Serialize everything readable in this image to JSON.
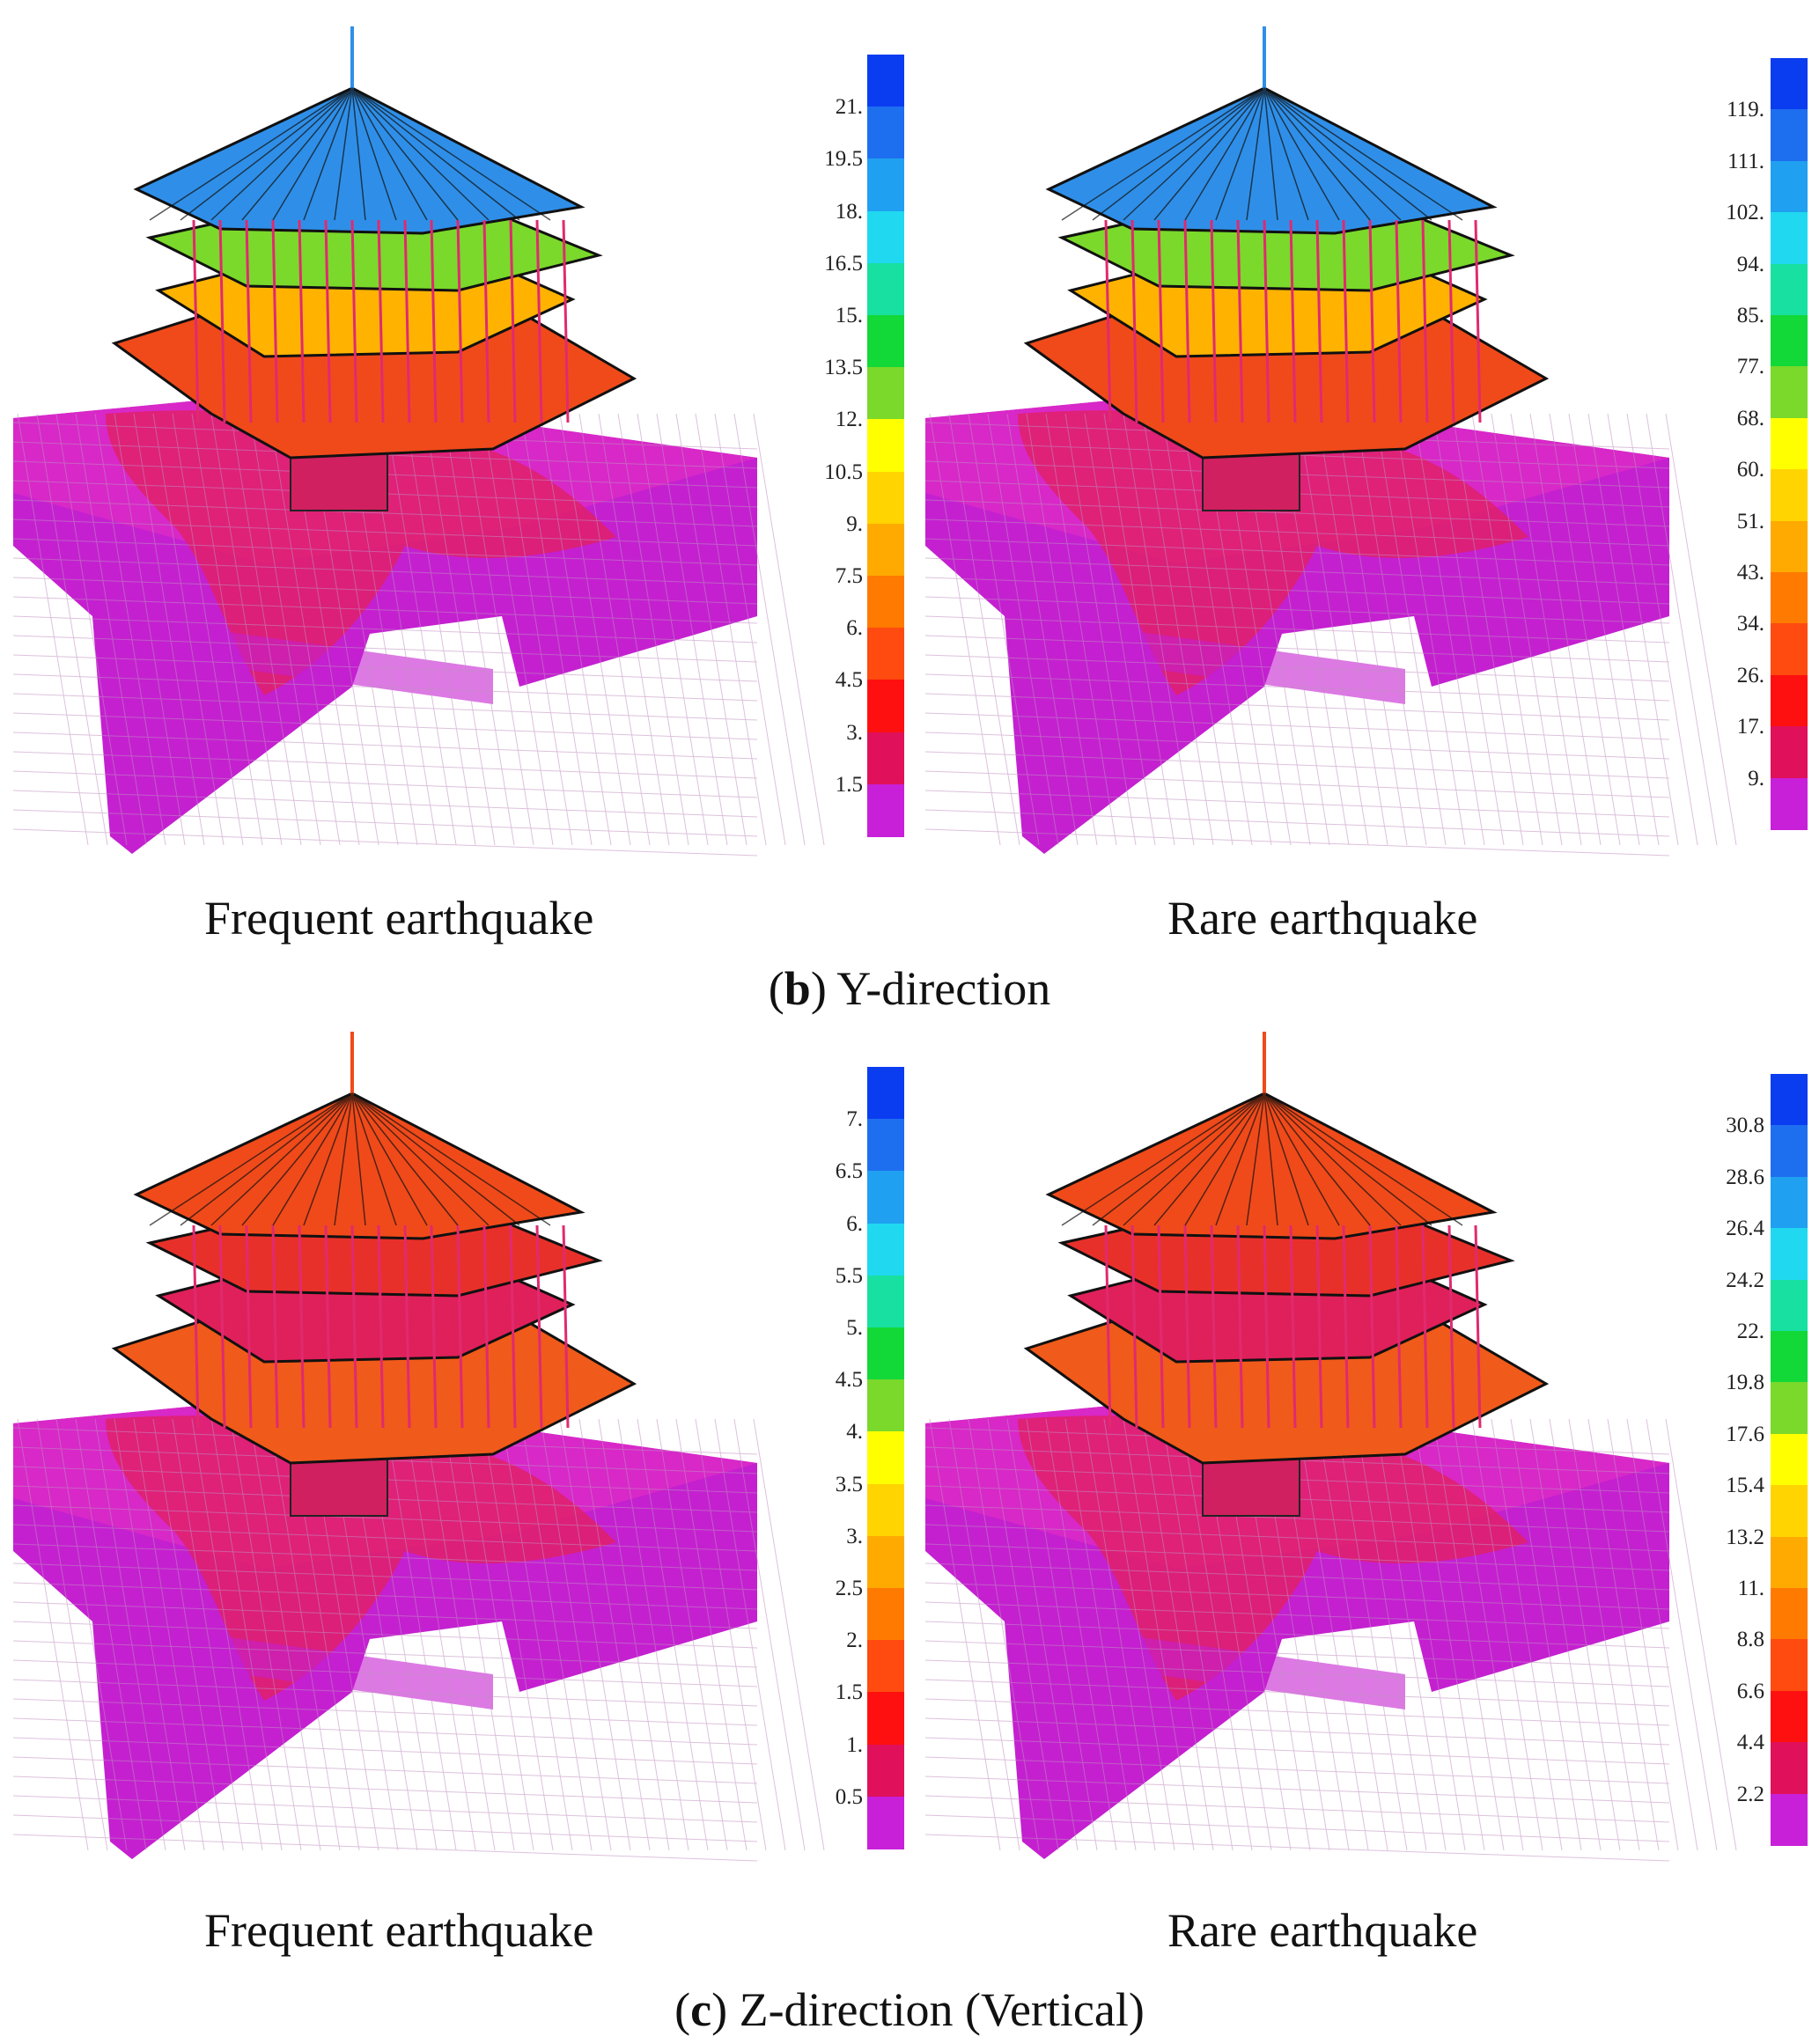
{
  "sections": [
    {
      "id": "b",
      "letter": "b",
      "title": "Y-direction",
      "panels": [
        {
          "caption": "Frequent earthquake",
          "colorbar_ticks": [
            "21.",
            "19.5",
            "18.",
            "16.5",
            "15.",
            "13.5",
            "12.",
            "10.5",
            "9.",
            "7.5",
            "6.",
            "4.5",
            "3.",
            "1.5"
          ],
          "roof_color": "#2f8fe8",
          "upper_color": "#7ad92a",
          "mid_color": "#ffb300",
          "lower_color": "#f04a1a"
        },
        {
          "caption": "Rare earthquake",
          "colorbar_ticks": [
            "119.",
            "111.",
            "102.",
            "94.",
            "85.",
            "77.",
            "68.",
            "60.",
            "51.",
            "43.",
            "34.",
            "26.",
            "17.",
            "9."
          ],
          "roof_color": "#2f8fe8",
          "upper_color": "#7ad92a",
          "mid_color": "#ffb300",
          "lower_color": "#f04a1a"
        }
      ]
    },
    {
      "id": "c",
      "letter": "c",
      "title": "Z-direction (Vertical)",
      "panels": [
        {
          "caption": "Frequent earthquake",
          "colorbar_ticks": [
            "7.",
            "6.5",
            "6.",
            "5.5",
            "5.",
            "4.5",
            "4.",
            "3.5",
            "3.",
            "2.5",
            "2.",
            "1.5",
            "1.",
            "0.5"
          ],
          "roof_color": "#f04a1a",
          "upper_color": "#e8302a",
          "mid_color": "#e0205a",
          "lower_color": "#f05a1a"
        },
        {
          "caption": "Rare earthquake",
          "colorbar_ticks": [
            "30.8",
            "28.6",
            "26.4",
            "24.2",
            "22.",
            "19.8",
            "17.6",
            "15.4",
            "13.2",
            "11.",
            "8.8",
            "6.6",
            "4.4",
            "2.2"
          ],
          "roof_color": "#f04a1a",
          "upper_color": "#e8302a",
          "mid_color": "#e0205a",
          "lower_color": "#f05a1a"
        }
      ]
    }
  ],
  "colorbar_colors": [
    "#0a3cf0",
    "#1e6ef0",
    "#1fa0f0",
    "#20d8f0",
    "#18e0a0",
    "#12d838",
    "#7ad92a",
    "#ffff00",
    "#ffd400",
    "#ffaa00",
    "#ff7a00",
    "#ff4a10",
    "#ff1010",
    "#e0105a",
    "#c820d8"
  ],
  "base_color": "#c420d0",
  "base_zone_color": "#e0206a"
}
